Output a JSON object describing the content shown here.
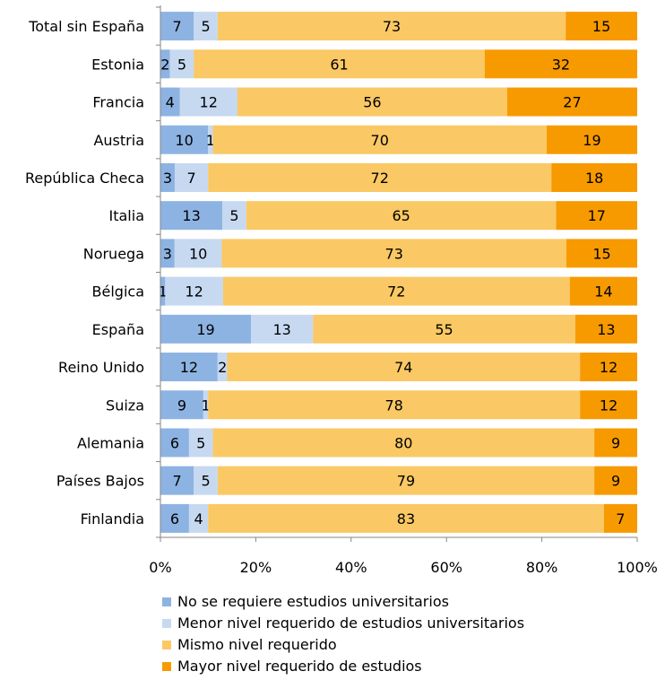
{
  "chart_data": {
    "type": "bar",
    "orientation": "horizontal",
    "stacked": "percent",
    "categories": [
      "Total sin España",
      "Estonia",
      "Francia",
      "Austria",
      "República Checa",
      "Italia",
      "Noruega",
      "Bélgica",
      "España",
      "Reino Unido",
      "Suiza",
      "Alemania",
      "Países Bajos",
      "Finlandia"
    ],
    "series": [
      {
        "name": "No se requiere estudios universitarios",
        "color": "#8DB3E2",
        "values": [
          7,
          2,
          4,
          10,
          3,
          13,
          3,
          1,
          19,
          12,
          9,
          6,
          7,
          6
        ]
      },
      {
        "name": "Menor nivel requerido de estudios universitarios",
        "color": "#C6D9F1",
        "values": [
          5,
          5,
          12,
          1,
          7,
          5,
          10,
          12,
          13,
          2,
          1,
          5,
          5,
          4
        ]
      },
      {
        "name": "Mismo nivel requerido",
        "color": "#FAC864",
        "values": [
          73,
          61,
          56,
          70,
          72,
          65,
          73,
          72,
          55,
          74,
          78,
          80,
          79,
          83
        ]
      },
      {
        "name": "Mayor nivel requerido de estudios",
        "color": "#F79A00",
        "values": [
          15,
          32,
          27,
          19,
          18,
          17,
          15,
          14,
          13,
          12,
          12,
          9,
          9,
          7
        ]
      }
    ],
    "x_ticks": [
      "0%",
      "20%",
      "40%",
      "60%",
      "80%",
      "100%"
    ],
    "xlim": [
      0,
      100
    ],
    "grid": false,
    "legend_position": "bottom"
  }
}
